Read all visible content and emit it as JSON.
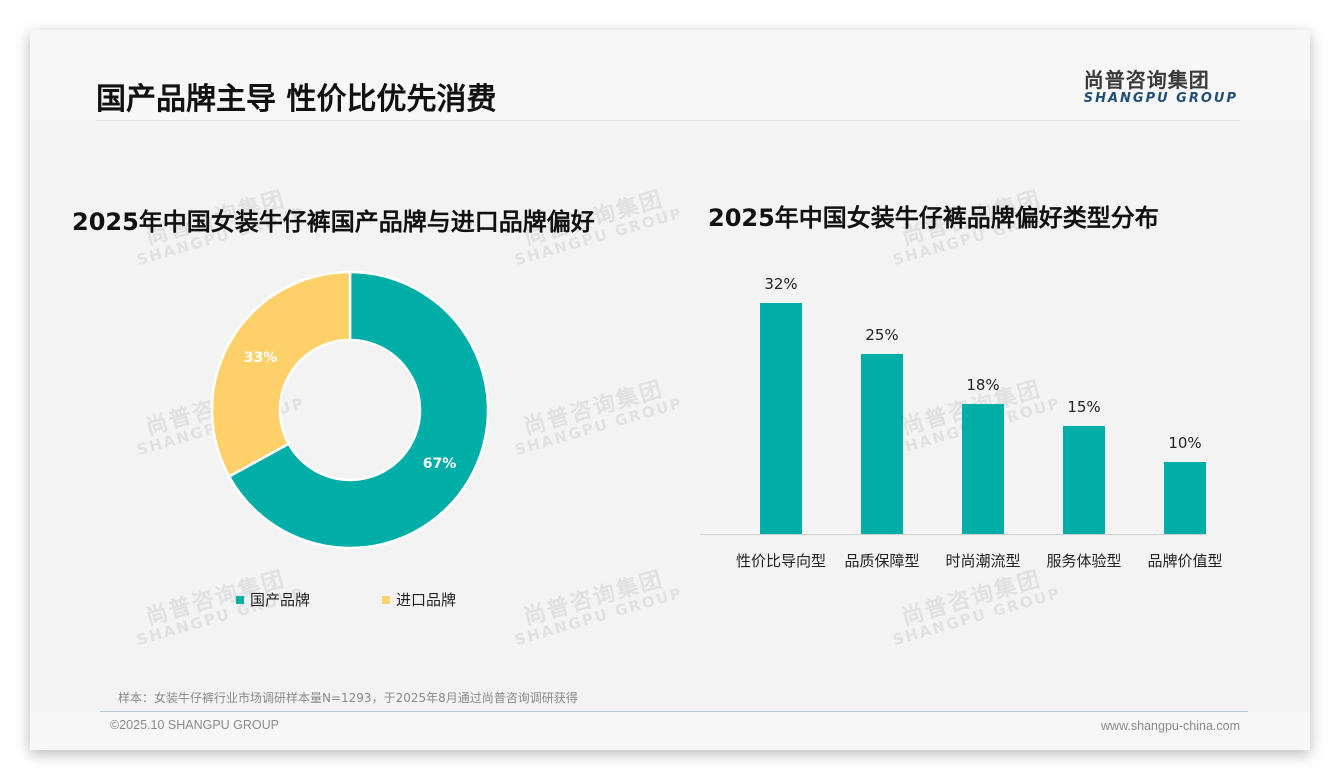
{
  "header": {
    "title": "国产品牌主导 性价比优先消费",
    "logo_cn": "尚普咨询集团",
    "logo_en": "SHANGPU GROUP"
  },
  "watermark": {
    "cn": "尚普咨询集团",
    "en": "SHANGPU GROUP"
  },
  "colors": {
    "teal": "#00ada7",
    "yellow": "#fdd06a"
  },
  "left_chart": {
    "title": "2025年中国女装牛仔裤国产品牌与进口品牌偏好",
    "slices": [
      {
        "name": "国产品牌",
        "label": "67%",
        "value": 67,
        "color": "#00ada7"
      },
      {
        "name": "进口品牌",
        "label": "33%",
        "value": 33,
        "color": "#fdd06a"
      }
    ],
    "legend": [
      "国产品牌",
      "进口品牌"
    ]
  },
  "right_chart": {
    "title": "2025年中国女装牛仔裤品牌偏好类型分布",
    "bars": [
      {
        "category": "性价比导向型",
        "label": "32%",
        "value": 32
      },
      {
        "category": "品质保障型",
        "label": "25%",
        "value": 25
      },
      {
        "category": "时尚潮流型",
        "label": "18%",
        "value": 18
      },
      {
        "category": "服务体验型",
        "label": "15%",
        "value": 15
      },
      {
        "category": "品牌价值型",
        "label": "10%",
        "value": 10
      }
    ]
  },
  "chart_data": [
    {
      "type": "pie",
      "title": "2025年中国女装牛仔裤国产品牌与进口品牌偏好",
      "categories": [
        "国产品牌",
        "进口品牌"
      ],
      "values": [
        67,
        33
      ],
      "unit": "%",
      "donut": true,
      "legend_position": "bottom"
    },
    {
      "type": "bar",
      "title": "2025年中国女装牛仔裤品牌偏好类型分布",
      "categories": [
        "性价比导向型",
        "品质保障型",
        "时尚潮流型",
        "服务体验型",
        "品牌价值型"
      ],
      "values": [
        32,
        25,
        18,
        15,
        10
      ],
      "unit": "%",
      "xlabel": "",
      "ylabel": "",
      "grid": false,
      "ylim": [
        0,
        35
      ]
    }
  ],
  "footer": {
    "note": "样本：女装牛仔裤行业市场调研样本量N=1293，于2025年8月通过尚普咨询调研获得",
    "copyright": "©2025.10 SHANGPU GROUP",
    "website": "www.shangpu-china.com"
  }
}
